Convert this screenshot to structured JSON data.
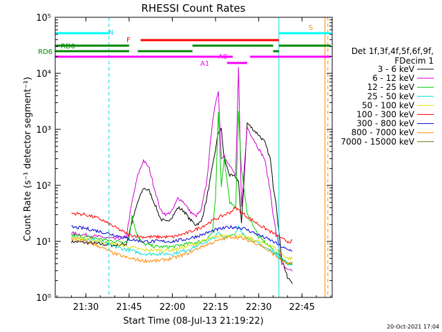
{
  "chart_data": {
    "type": "line",
    "title": "RHESSI Count Rates",
    "xlabel": "Start Time (08-Jul-13 21:19:22)",
    "ylabel": "Count Rate (s⁻¹ detector segment⁻¹)",
    "yscale": "log",
    "ylim": [
      1,
      100000
    ],
    "xlim": [
      "21:19:22",
      "22:55:30"
    ],
    "xticks": [
      "21:30",
      "21:45",
      "22:00",
      "22:15",
      "22:30",
      "22:45"
    ],
    "yticks": [
      "10⁰",
      "10¹",
      "10²",
      "10³",
      "10⁴",
      "10⁵"
    ],
    "grid": false,
    "legend_title": [
      "Det 1f,3f,4f,5f,6f,9f,",
      "FDecim 1"
    ],
    "legend_position": "right",
    "series": [
      {
        "name": "3 - 6 keV",
        "color": "#000000",
        "x": [
          "21:25",
          "21:30",
          "21:35",
          "21:40",
          "21:44",
          "21:46",
          "21:48",
          "21:50",
          "21:52",
          "21:54",
          "21:56",
          "21:58",
          "22:00",
          "22:02",
          "22:04",
          "22:06",
          "22:08",
          "22:10",
          "22:12",
          "22:14",
          "22:16",
          "22:17",
          "22:18",
          "22:20",
          "22:22",
          "22:23",
          "22:24",
          "22:26",
          "22:28",
          "22:30",
          "22:32",
          "22:34",
          "22:35",
          "22:36",
          "22:37",
          "22:38",
          "22:40",
          "22:42"
        ],
        "y": [
          10,
          9.5,
          9,
          8.5,
          9,
          22,
          50,
          90,
          80,
          45,
          25,
          22,
          28,
          40,
          35,
          25,
          20,
          22,
          60,
          220,
          900,
          1000,
          300,
          150,
          140,
          120,
          20,
          1300,
          1000,
          800,
          600,
          300,
          100,
          50,
          15,
          5,
          2.2,
          1.8
        ]
      },
      {
        "name": "6 - 12 keV",
        "color": "#cc00cc",
        "x": [
          "21:25",
          "21:30",
          "21:35",
          "21:40",
          "21:44",
          "21:46",
          "21:48",
          "21:50",
          "21:52",
          "21:54",
          "21:56",
          "21:58",
          "22:00",
          "22:02",
          "22:04",
          "22:06",
          "22:08",
          "22:10",
          "22:12",
          "22:14",
          "22:16",
          "22:17",
          "22:18",
          "22:20",
          "22:22",
          "22:23",
          "22:24",
          "22:26",
          "22:28",
          "22:30",
          "22:32",
          "22:34",
          "22:35",
          "22:36",
          "22:37",
          "22:38",
          "22:40",
          "22:42"
        ],
        "y": [
          14,
          13,
          12,
          11,
          12,
          50,
          150,
          280,
          200,
          80,
          35,
          30,
          35,
          60,
          50,
          35,
          28,
          35,
          120,
          1500,
          5000,
          300,
          350,
          220,
          150,
          12000,
          40,
          1100,
          700,
          450,
          300,
          80,
          30,
          15,
          8,
          4,
          3,
          3
        ]
      },
      {
        "name": "12 - 25 keV",
        "color": "#00cc00",
        "x": [
          "21:25",
          "21:30",
          "21:35",
          "21:40",
          "21:44",
          "21:45",
          "21:46",
          "21:48",
          "21:50",
          "21:55",
          "22:00",
          "22:05",
          "22:10",
          "22:12",
          "22:14",
          "22:15",
          "22:16",
          "22:17",
          "22:18",
          "22:20",
          "22:22",
          "22:23",
          "22:24",
          "22:26",
          "22:28",
          "22:30",
          "22:34",
          "22:38",
          "22:40",
          "22:42"
        ],
        "y": [
          13,
          12,
          11,
          10,
          10,
          11,
          28,
          12,
          9,
          8,
          8,
          9,
          10,
          11,
          15,
          60,
          2000,
          100,
          300,
          50,
          40,
          2000,
          200,
          30,
          20,
          12,
          8,
          5,
          4,
          4
        ]
      },
      {
        "name": "25 - 50 keV",
        "color": "#00dddd",
        "x": [
          "21:25",
          "21:30",
          "21:35",
          "21:40",
          "21:45",
          "21:50",
          "21:55",
          "22:00",
          "22:05",
          "22:10",
          "22:14",
          "22:16",
          "22:18",
          "22:20",
          "22:22",
          "22:23",
          "22:24",
          "22:26",
          "22:30",
          "22:34",
          "22:38",
          "22:40",
          "22:42"
        ],
        "y": [
          12,
          11,
          10,
          8,
          7,
          6,
          6,
          6,
          7,
          9,
          11,
          14,
          12,
          13,
          14,
          18,
          14,
          12,
          9,
          7,
          5,
          4,
          4
        ]
      },
      {
        "name": "50 - 100 keV",
        "color": "#dddd00",
        "x": [
          "21:25",
          "21:30",
          "21:35",
          "21:40",
          "21:45",
          "21:50",
          "21:55",
          "22:00",
          "22:05",
          "22:10",
          "22:15",
          "22:20",
          "22:22",
          "22:25",
          "22:30",
          "22:35",
          "22:38",
          "22:40",
          "22:42"
        ],
        "y": [
          12,
          11,
          10,
          9,
          8,
          7,
          7,
          7,
          8,
          10,
          12,
          13,
          13,
          12,
          10,
          8,
          6,
          5,
          5
        ]
      },
      {
        "name": "100 - 300 keV",
        "color": "#ff0000",
        "x": [
          "21:25",
          "21:30",
          "21:35",
          "21:40",
          "21:45",
          "21:50",
          "21:55",
          "22:00",
          "22:05",
          "22:10",
          "22:15",
          "22:20",
          "22:22",
          "22:25",
          "22:30",
          "22:35",
          "22:38",
          "22:40",
          "22:42"
        ],
        "y": [
          32,
          30,
          25,
          18,
          13,
          12,
          12,
          12,
          14,
          18,
          25,
          33,
          40,
          30,
          20,
          14,
          11,
          10,
          10
        ]
      },
      {
        "name": "300 - 800 keV",
        "color": "#0000cc",
        "x": [
          "21:25",
          "21:30",
          "21:35",
          "21:40",
          "21:45",
          "21:50",
          "21:55",
          "22:00",
          "22:05",
          "22:10",
          "22:15",
          "22:20",
          "22:22",
          "22:25",
          "22:30",
          "22:35",
          "22:38",
          "22:40",
          "22:42"
        ],
        "y": [
          18,
          17,
          15,
          13,
          11,
          10,
          10,
          10,
          11,
          13,
          16,
          18,
          18,
          17,
          13,
          10,
          8,
          7,
          7
        ]
      },
      {
        "name": "800 - 7000 keV",
        "color": "#ff8800",
        "x": [
          "21:25",
          "21:30",
          "21:35",
          "21:40",
          "21:45",
          "21:50",
          "21:55",
          "22:00",
          "22:05",
          "22:10",
          "22:15",
          "22:20",
          "22:22",
          "22:25",
          "22:30",
          "22:35",
          "22:38",
          "22:40",
          "22:42"
        ],
        "y": [
          11,
          10,
          8,
          6,
          5,
          4.5,
          4.5,
          5,
          6,
          8,
          10,
          12,
          12,
          11,
          9,
          6,
          4.5,
          4,
          4
        ]
      },
      {
        "name": "7000 - 15000 keV",
        "color": "#557700",
        "x": [
          "21:25",
          "21:42"
        ],
        "y": [
          null,
          null
        ]
      }
    ],
    "vlines": [
      {
        "x": "21:38",
        "color": "#00dddd",
        "style": "dashed"
      },
      {
        "x": "22:37",
        "color": "#00dddd",
        "style": "solid"
      },
      {
        "x": "22:53",
        "color": "#ff8800",
        "style": "solid"
      },
      {
        "x": "22:54",
        "color": "#ff8800",
        "style": "dashed"
      }
    ],
    "flag_bars": [
      {
        "label": "N",
        "color": "#00ffff",
        "segments": [
          [
            "21:19",
            "21:38"
          ],
          [
            "22:37",
            "22:55"
          ]
        ]
      },
      {
        "label": "S",
        "color": "#ff8800",
        "segments": []
      },
      {
        "label": "F",
        "color": "#ff0000",
        "segments": [
          [
            "21:49",
            "22:37"
          ]
        ]
      },
      {
        "label": "RD0",
        "color": "#008800",
        "segments": [
          [
            "21:19",
            "21:45"
          ],
          [
            "22:07",
            "22:35"
          ],
          [
            "22:37",
            "22:55"
          ]
        ]
      },
      {
        "label": "RD6",
        "color": "#008800",
        "segments": [
          [
            "21:19",
            "21:45"
          ],
          [
            "21:48",
            "22:07"
          ],
          [
            "22:35",
            "22:37"
          ]
        ]
      },
      {
        "label": "A0",
        "color": "#ff00ff",
        "segments": [
          [
            "21:19",
            "22:21"
          ],
          [
            "22:27",
            "22:55"
          ]
        ]
      },
      {
        "label": "A1",
        "color": "#ff00ff",
        "segments": [
          [
            "22:19",
            "22:26"
          ]
        ]
      }
    ],
    "footer_date": "20-Oct-2021 17:04"
  }
}
